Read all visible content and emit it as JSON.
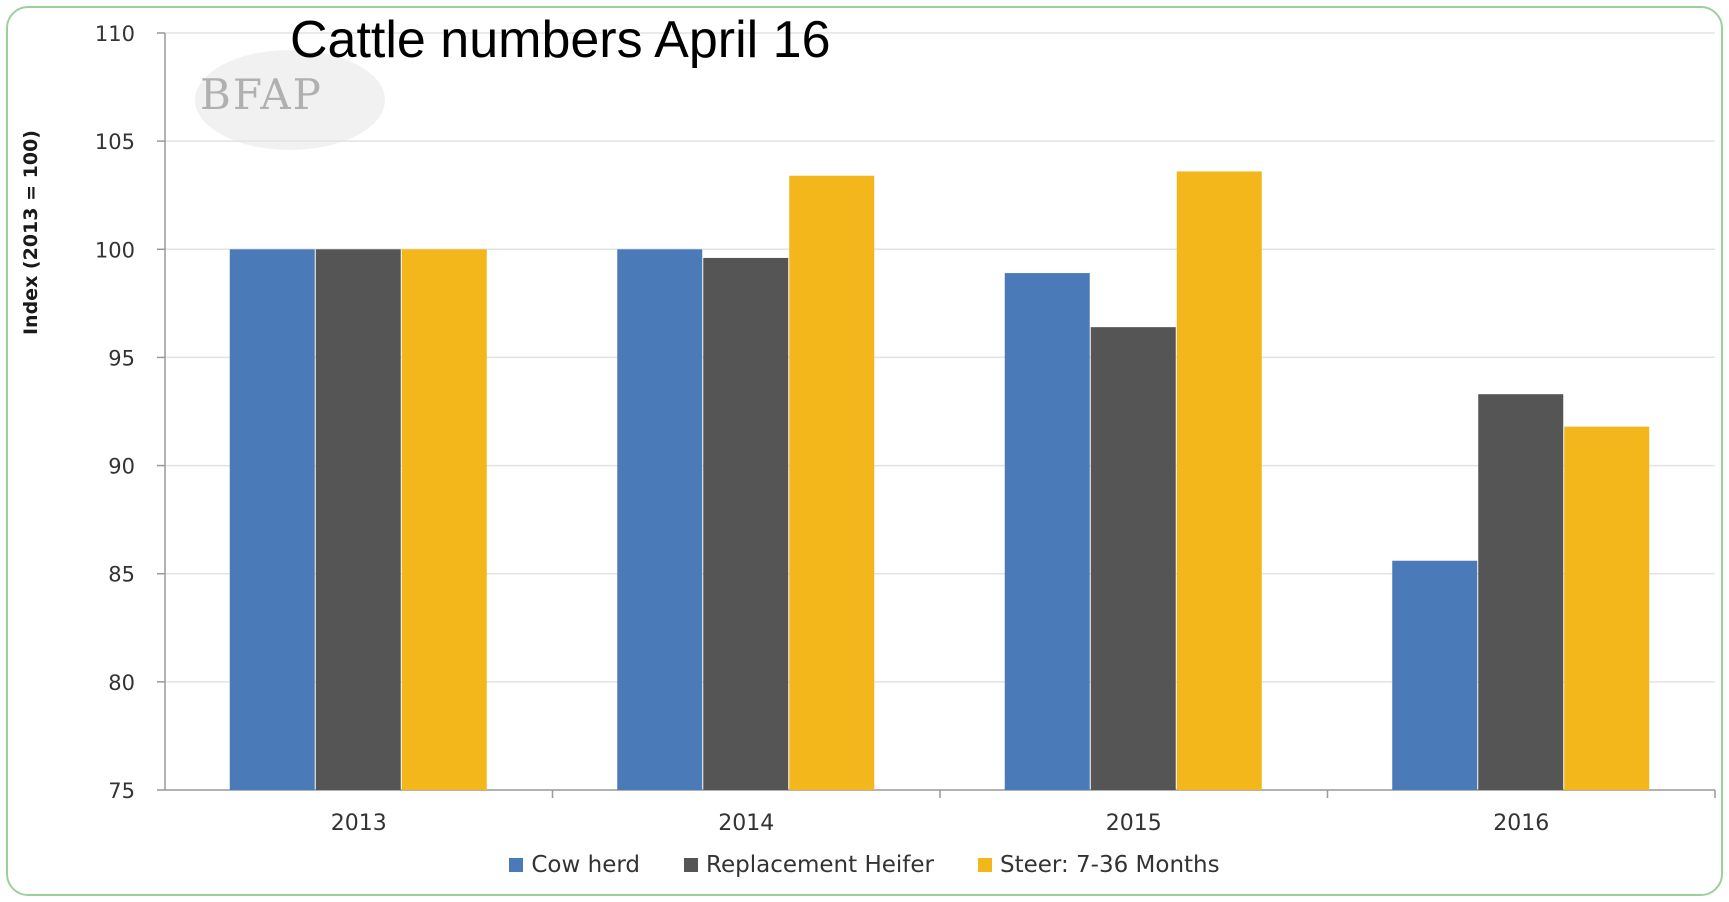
{
  "chart_data": {
    "type": "bar",
    "title": "Cattle numbers April 16",
    "ylabel": "Index (2013 = 100)",
    "xlabel": "",
    "categories": [
      "2013",
      "2014",
      "2015",
      "2016"
    ],
    "ylim": [
      75,
      110
    ],
    "yticks": [
      "75",
      "80",
      "85",
      "90",
      "95",
      "100",
      "105",
      "110"
    ],
    "grid": true,
    "legend_position": "bottom",
    "series": [
      {
        "name": "Cow herd",
        "color": "#4a7ab8",
        "values": [
          100,
          100,
          98.9,
          85.6
        ]
      },
      {
        "name": "Replacement Heifer",
        "color": "#555555",
        "values": [
          100,
          99.6,
          96.4,
          93.3
        ]
      },
      {
        "name": "Steer: 7-36 Months",
        "color": "#f3b71c",
        "values": [
          100,
          103.4,
          103.6,
          91.8
        ]
      }
    ]
  },
  "watermark": {
    "text": "BFAP"
  }
}
